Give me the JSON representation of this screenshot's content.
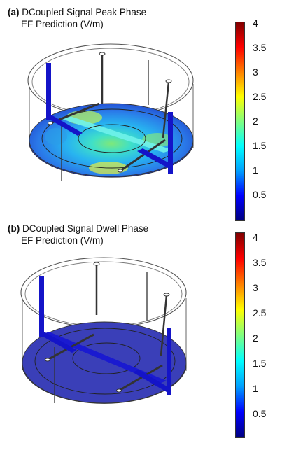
{
  "panels": [
    {
      "label": "(a)",
      "title_line1": "DCoupled Signal Peak Phase",
      "title_line2": "EF Prediction (V/m)",
      "colorbar_ticks": [
        "4",
        "3.5",
        "3",
        "2.5",
        "2",
        "1.5",
        "1",
        "0.5"
      ]
    },
    {
      "label": "(b)",
      "title_line1": "DCoupled Signal Dwell Phase",
      "title_line2": "EF Prediction (V/m)",
      "colorbar_ticks": [
        "4",
        "3.5",
        "3",
        "2.5",
        "2",
        "1.5",
        "1",
        "0.5"
      ]
    }
  ],
  "colormap": [
    "#000080",
    "#0000ff",
    "#00a0ff",
    "#00ffff",
    "#80ff80",
    "#ffff00",
    "#ff8000",
    "#ff0000",
    "#800000"
  ],
  "colors": {
    "electrode": "#1515c8",
    "disc_dwell": "#3a3fb8",
    "frame": "#555555"
  }
}
